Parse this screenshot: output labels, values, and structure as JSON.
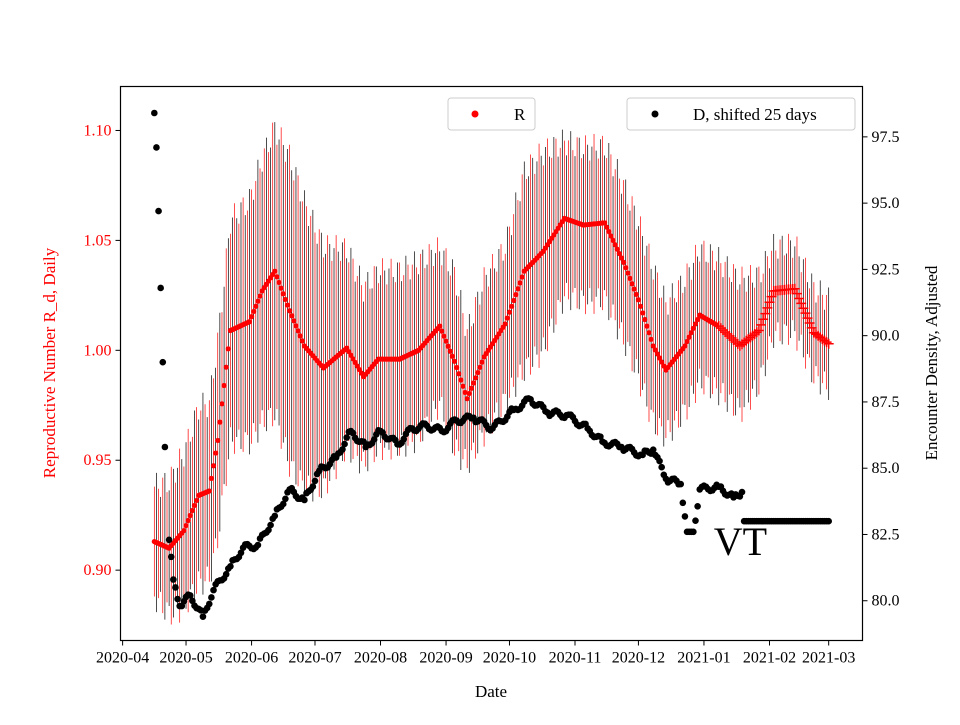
{
  "chart_data": {
    "type": "scatter",
    "title": "",
    "xlabel": "Date",
    "ylabel_left": "Reproductive Number R_d, Daily",
    "ylabel_right": "Encounter Density, Adjusted",
    "x_range": [
      "2020-03-31",
      "2021-03-17"
    ],
    "ylim_left": [
      0.868,
      1.12
    ],
    "ylim_right": [
      78.5,
      99.4
    ],
    "x_ticks": [
      "2020-04",
      "2020-05",
      "2020-06",
      "2020-07",
      "2020-08",
      "2020-09",
      "2020-10",
      "2020-11",
      "2020-12",
      "2021-01",
      "2021-02",
      "2021-03"
    ],
    "x_tick_dates": [
      "2020-04-01",
      "2020-05-01",
      "2020-06-01",
      "2020-07-01",
      "2020-08-01",
      "2020-09-01",
      "2020-10-01",
      "2020-11-01",
      "2020-12-01",
      "2021-01-01",
      "2021-02-01",
      "2021-03-01"
    ],
    "y_ticks_left": [
      "0.90",
      "0.95",
      "1.00",
      "1.05",
      "1.10"
    ],
    "y_ticks_right": [
      "80.0",
      "82.5",
      "85.0",
      "87.5",
      "90.0",
      "92.5",
      "95.0",
      "97.5"
    ],
    "grid": false,
    "annotation": "VT",
    "annotation_date": "2021-01-08",
    "annotation_value_right": 82.4,
    "colors": {
      "R": "#ff0000",
      "D": "#000000",
      "err_alt": "#000000"
    },
    "series": [
      {
        "name": "R",
        "axis": "left",
        "legend_label": "R",
        "legend_placement": "top-center",
        "plus_marker_from": "2021-01-08",
        "points": [
          [
            "2020-04-16",
            0.913,
            0.025
          ],
          [
            "2020-04-23",
            0.91,
            0.03
          ],
          [
            "2020-04-30",
            0.918,
            0.035
          ],
          [
            "2020-05-07",
            0.934,
            0.04
          ],
          [
            "2020-05-12",
            0.936,
            0.04
          ],
          [
            "2020-05-16",
            0.959,
            0.045
          ],
          [
            "2020-05-22",
            1.009,
            0.05
          ],
          [
            "2020-05-31",
            1.013,
            0.055
          ],
          [
            "2020-06-06",
            1.027,
            0.06
          ],
          [
            "2020-06-12",
            1.036,
            0.065
          ],
          [
            "2020-06-19",
            1.018,
            0.07
          ],
          [
            "2020-06-26",
            1.002,
            0.065
          ],
          [
            "2020-07-05",
            0.992,
            0.055
          ],
          [
            "2020-07-16",
            1.001,
            0.045
          ],
          [
            "2020-07-24",
            0.988,
            0.04
          ],
          [
            "2020-07-31",
            0.996,
            0.04
          ],
          [
            "2020-08-10",
            0.996,
            0.04
          ],
          [
            "2020-08-19",
            1.0,
            0.04
          ],
          [
            "2020-08-29",
            1.011,
            0.035
          ],
          [
            "2020-09-05",
            0.995,
            0.04
          ],
          [
            "2020-09-11",
            0.978,
            0.03
          ],
          [
            "2020-09-19",
            0.997,
            0.035
          ],
          [
            "2020-09-29",
            1.012,
            0.035
          ],
          [
            "2020-10-08",
            1.036,
            0.045
          ],
          [
            "2020-10-17",
            1.045,
            0.045
          ],
          [
            "2020-10-27",
            1.06,
            0.035
          ],
          [
            "2020-11-05",
            1.057,
            0.035
          ],
          [
            "2020-11-15",
            1.058,
            0.035
          ],
          [
            "2020-11-24",
            1.04,
            0.035
          ],
          [
            "2020-12-01",
            1.023,
            0.035
          ],
          [
            "2020-12-08",
            1.002,
            0.035
          ],
          [
            "2020-12-14",
            0.991,
            0.03
          ],
          [
            "2020-12-23",
            1.002,
            0.03
          ],
          [
            "2020-12-30",
            1.016,
            0.03
          ],
          [
            "2021-01-08",
            1.011,
            0.03
          ],
          [
            "2021-01-18",
            1.002,
            0.03
          ],
          [
            "2021-01-27",
            1.009,
            0.025
          ],
          [
            "2021-02-03",
            1.027,
            0.02
          ],
          [
            "2021-02-13",
            1.028,
            0.02
          ],
          [
            "2021-02-22",
            1.008,
            0.02
          ],
          [
            "2021-03-01",
            1.003,
            0.02
          ]
        ]
      },
      {
        "name": "D",
        "axis": "right",
        "legend_label": "D, shifted 25 days",
        "legend_placement": "top-right",
        "points": [
          [
            "2020-04-16",
            98.4
          ],
          [
            "2020-04-17",
            97.1
          ],
          [
            "2020-04-18",
            94.7
          ],
          [
            "2020-04-19",
            91.8
          ],
          [
            "2020-04-20",
            89.0
          ],
          [
            "2020-04-21",
            85.8
          ],
          [
            "2020-04-23",
            82.3
          ],
          [
            "2020-04-25",
            80.8
          ],
          [
            "2020-04-28",
            79.8
          ],
          [
            "2020-05-03",
            80.2
          ],
          [
            "2020-05-09",
            79.4
          ],
          [
            "2020-05-14",
            80.4
          ],
          [
            "2020-05-22",
            81.3
          ],
          [
            "2020-05-28",
            82.0
          ],
          [
            "2020-06-04",
            82.1
          ],
          [
            "2020-06-12",
            83.2
          ],
          [
            "2020-06-19",
            84.2
          ],
          [
            "2020-06-26",
            83.8
          ],
          [
            "2020-07-03",
            84.9
          ],
          [
            "2020-07-11",
            85.4
          ],
          [
            "2020-07-18",
            86.4
          ],
          [
            "2020-07-25",
            85.8
          ],
          [
            "2020-08-01",
            86.4
          ],
          [
            "2020-08-09",
            85.9
          ],
          [
            "2020-08-16",
            86.5
          ],
          [
            "2020-08-23",
            86.6
          ],
          [
            "2020-08-30",
            86.4
          ],
          [
            "2020-09-06",
            86.8
          ],
          [
            "2020-09-14",
            86.9
          ],
          [
            "2020-09-23",
            86.5
          ],
          [
            "2020-10-03",
            87.2
          ],
          [
            "2020-10-11",
            87.6
          ],
          [
            "2020-10-19",
            87.1
          ],
          [
            "2020-10-28",
            87.0
          ],
          [
            "2020-11-07",
            86.5
          ],
          [
            "2020-11-14",
            86.0
          ],
          [
            "2020-11-23",
            85.8
          ],
          [
            "2020-12-03",
            85.5
          ],
          [
            "2020-12-08",
            85.7
          ],
          [
            "2020-12-14",
            84.6
          ],
          [
            "2020-12-21",
            84.4
          ],
          [
            "2020-12-24",
            82.6
          ],
          [
            "2020-12-27",
            82.6
          ],
          [
            "2020-12-30",
            84.2
          ],
          [
            "2021-01-08",
            84.3
          ],
          [
            "2021-01-15",
            83.9
          ],
          [
            "2021-01-19",
            84.1
          ],
          [
            "2021-01-20",
            83.0
          ],
          [
            "2021-03-01",
            83.0
          ]
        ]
      }
    ]
  }
}
